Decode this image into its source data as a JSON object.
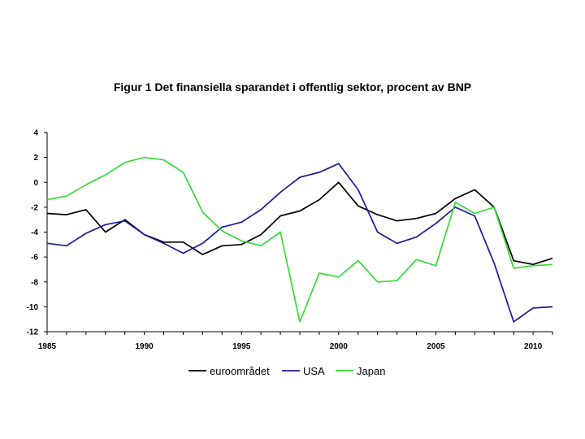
{
  "chart_data": {
    "type": "line",
    "title": "Figur 1 Det finansiella sparandet i offentlig sektor, procent av BNP",
    "xlabel": "",
    "ylabel": "",
    "x": [
      1985,
      1986,
      1987,
      1988,
      1989,
      1990,
      1991,
      1992,
      1993,
      1994,
      1995,
      1996,
      1997,
      1998,
      1999,
      2000,
      2001,
      2002,
      2003,
      2004,
      2005,
      2006,
      2007,
      2008,
      2009,
      2010,
      2011
    ],
    "xlim": [
      1985,
      2011
    ],
    "ylim": [
      -12,
      4
    ],
    "xticks": [
      "1985",
      "1990",
      "1995",
      "2000",
      "2005",
      "2010"
    ],
    "yticks": [
      "4",
      "2",
      "0",
      "-2",
      "-4",
      "-6",
      "-8",
      "-10",
      "-12"
    ],
    "grid": false,
    "legend_position": "bottom",
    "series": [
      {
        "name": "euroområdet",
        "color": "#000000",
        "values": [
          -2.5,
          -2.6,
          -2.2,
          -4.0,
          -3.0,
          -4.2,
          -4.8,
          -4.8,
          -5.8,
          -5.1,
          -5.0,
          -4.2,
          -2.7,
          -2.3,
          -1.4,
          -0.0,
          -1.9,
          -2.6,
          -3.1,
          -2.9,
          -2.5,
          -1.3,
          -0.6,
          -2.0,
          -6.3,
          -6.6,
          -6.1
        ]
      },
      {
        "name": "USA",
        "color": "#1a1a99",
        "values": [
          -4.9,
          -5.1,
          -4.1,
          -3.4,
          -3.1,
          -4.2,
          -4.9,
          -5.7,
          -4.9,
          -3.6,
          -3.2,
          -2.2,
          -0.8,
          0.4,
          0.8,
          1.5,
          -0.6,
          -4.0,
          -4.9,
          -4.4,
          -3.3,
          -2.0,
          -2.7,
          -6.5,
          -11.2,
          -10.1,
          -10.0
        ]
      },
      {
        "name": "Japan",
        "color": "#33dd33",
        "values": [
          -1.4,
          -1.1,
          -0.2,
          0.6,
          1.6,
          2.0,
          1.8,
          0.8,
          -2.4,
          -3.9,
          -4.7,
          -5.1,
          -4.0,
          -11.2,
          -7.3,
          -7.6,
          -6.3,
          -8.0,
          -7.9,
          -6.2,
          -6.7,
          -1.6,
          -2.5,
          -2.0,
          -6.9,
          -6.7,
          -6.6
        ]
      }
    ]
  }
}
